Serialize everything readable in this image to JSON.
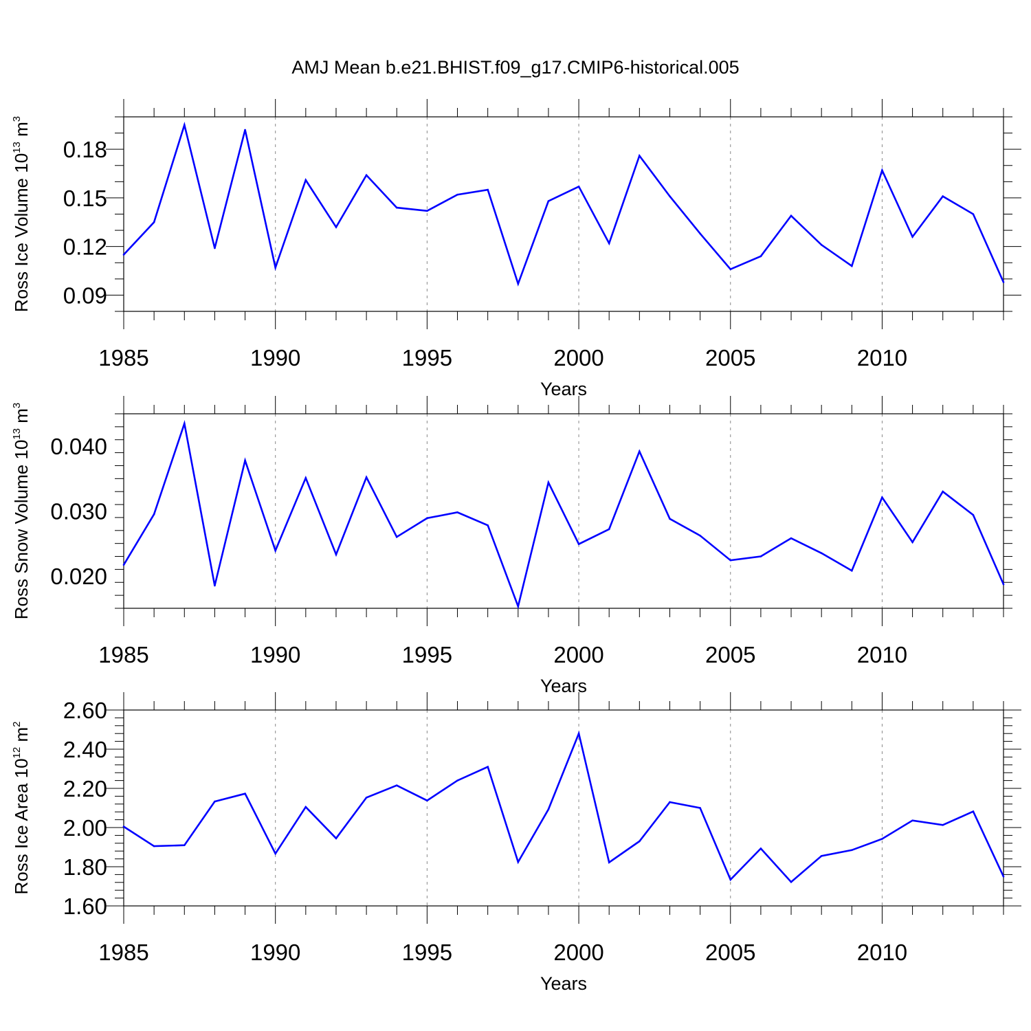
{
  "title": "AMJ Mean b.e21.BHIST.f09_g17.CMIP6-historical.005",
  "colors": {
    "series": "#0000ff",
    "axes": "#000000",
    "grid": "#888888"
  },
  "chart_data": [
    {
      "type": "line",
      "title": "AMJ Mean b.e21.BHIST.f09_g17.CMIP6-historical.005",
      "xlabel": "Years",
      "ylabel": {
        "text": "Ross Ice Volume 10",
        "exp": "13",
        "unit": " m",
        "unit_exp": "3"
      },
      "xlim": [
        1985,
        2014
      ],
      "ylim": [
        0.08,
        0.2
      ]
    },
    {
      "type": "line",
      "xlabel": "Years",
      "ylabel": {
        "text": "Ross Snow Volume 10",
        "exp": "13",
        "unit": " m",
        "unit_exp": "3"
      },
      "xlim": [
        1985,
        2014
      ],
      "ylim": [
        0.015,
        0.045
      ]
    },
    {
      "type": "line",
      "xlabel": "Years",
      "ylabel": {
        "text": "Ross Ice Area 10",
        "exp": "12",
        "unit": " m",
        "unit_exp": "2"
      },
      "xlim": [
        1985,
        2014
      ],
      "ylim": [
        1.6,
        2.6
      ]
    }
  ],
  "x_years": [
    1985,
    1986,
    1987,
    1988,
    1989,
    1990,
    1991,
    1992,
    1993,
    1994,
    1995,
    1996,
    1997,
    1998,
    1999,
    2000,
    2001,
    2002,
    2003,
    2004,
    2005,
    2006,
    2007,
    2008,
    2009,
    2010,
    2011,
    2012,
    2013,
    2014
  ],
  "ice_volume": {
    "values": [
      0.115,
      0.135,
      0.195,
      0.119,
      0.192,
      0.107,
      0.161,
      0.132,
      0.164,
      0.144,
      0.142,
      0.152,
      0.155,
      0.097,
      0.148,
      0.157,
      0.122,
      0.176,
      0.151,
      0.128,
      0.106,
      0.114,
      0.139,
      0.121,
      0.108,
      0.167,
      0.126,
      0.151,
      0.14,
      0.098
    ],
    "yticks": [
      "0.09",
      "0.12",
      "0.15",
      "0.18"
    ]
  },
  "snow_volume": {
    "values": [
      0.0217,
      0.0295,
      0.0435,
      0.0185,
      0.0378,
      0.0239,
      0.0351,
      0.0233,
      0.0352,
      0.026,
      0.0289,
      0.0298,
      0.0278,
      0.0153,
      0.0344,
      0.0249,
      0.0272,
      0.0392,
      0.0288,
      0.0262,
      0.0224,
      0.023,
      0.0258,
      0.0235,
      0.0208,
      0.0321,
      0.0252,
      0.033,
      0.0294,
      0.0187
    ],
    "yticks": [
      "0.020",
      "0.030",
      "0.040"
    ]
  },
  "ice_area": {
    "values": [
      2.005,
      1.905,
      1.91,
      2.133,
      2.173,
      1.867,
      2.105,
      1.945,
      2.153,
      2.215,
      2.138,
      2.24,
      2.31,
      1.824,
      2.093,
      2.48,
      1.822,
      1.93,
      2.13,
      2.1,
      1.734,
      1.893,
      1.722,
      1.855,
      1.885,
      1.942,
      2.036,
      2.013,
      2.082,
      1.75
    ],
    "yticks": [
      "1.60",
      "1.80",
      "2.00",
      "2.20",
      "2.40",
      "2.60"
    ]
  },
  "xticks": [
    "1985",
    "1990",
    "1995",
    "2000",
    "2005",
    "2010"
  ]
}
